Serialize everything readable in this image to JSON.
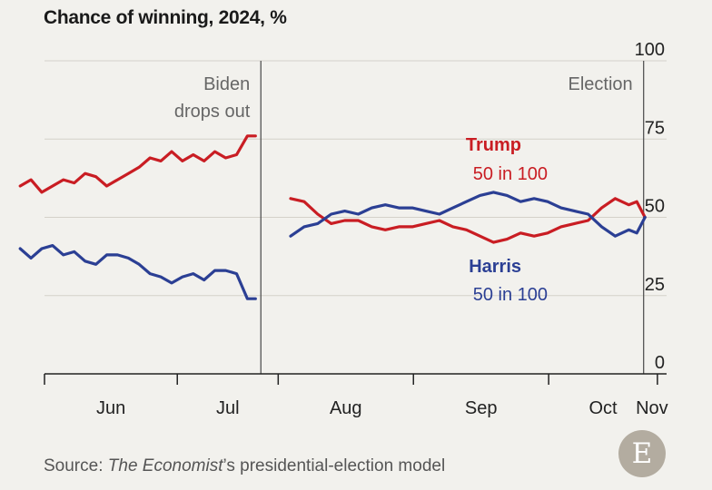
{
  "chart_data": {
    "type": "line",
    "title": "Chance of winning, 2024, %",
    "xlabel": "",
    "ylabel": "",
    "ylim": [
      0,
      100
    ],
    "x_domain": [
      0,
      23
    ],
    "y_ticks": [
      {
        "value": 100,
        "label": "100"
      },
      {
        "value": 75,
        "label": "75"
      },
      {
        "value": 50,
        "label": "50"
      },
      {
        "value": 25,
        "label": "25"
      },
      {
        "value": 0,
        "label": "0"
      }
    ],
    "x_ticks": [
      {
        "value": 0,
        "label": "Jun"
      },
      {
        "value": 4.91,
        "label": "Jul"
      },
      {
        "value": 8.64,
        "label": "Aug"
      },
      {
        "value": 13.64,
        "label": "Sep"
      },
      {
        "value": 18.64,
        "label": "Oct"
      },
      {
        "value": 22.66,
        "label": "Nov"
      }
    ],
    "annotations": [
      {
        "name": "biden-drops-out",
        "x": 8,
        "lines": [
          "Biden",
          "drops out"
        ]
      },
      {
        "name": "election",
        "x": 22.15,
        "lines": [
          "Election"
        ]
      }
    ],
    "series": [
      {
        "name": "Trump",
        "label": "Trump",
        "value_label": "50 in 100",
        "color": "#c91d23",
        "segments": [
          [
            [
              -0.9,
              60
            ],
            [
              -0.5,
              62
            ],
            [
              -0.1,
              58
            ],
            [
              0.3,
              60
            ],
            [
              0.7,
              62
            ],
            [
              1.1,
              61
            ],
            [
              1.5,
              64
            ],
            [
              1.9,
              63
            ],
            [
              2.3,
              60
            ],
            [
              2.7,
              62
            ],
            [
              3.1,
              64
            ],
            [
              3.5,
              66
            ],
            [
              3.9,
              69
            ],
            [
              4.3,
              68
            ],
            [
              4.7,
              71
            ],
            [
              5.1,
              68
            ],
            [
              5.5,
              70
            ],
            [
              5.9,
              68
            ],
            [
              6.3,
              71
            ],
            [
              6.7,
              69
            ],
            [
              7.1,
              70
            ],
            [
              7.5,
              76
            ],
            [
              7.8,
              76
            ]
          ],
          [
            [
              9.1,
              56
            ],
            [
              9.6,
              55
            ],
            [
              10.1,
              51
            ],
            [
              10.6,
              48
            ],
            [
              11.1,
              49
            ],
            [
              11.6,
              49
            ],
            [
              12.1,
              47
            ],
            [
              12.6,
              46
            ],
            [
              13.1,
              47
            ],
            [
              13.6,
              47
            ],
            [
              14.1,
              48
            ],
            [
              14.6,
              49
            ],
            [
              15.1,
              47
            ],
            [
              15.6,
              46
            ],
            [
              16.1,
              44
            ],
            [
              16.6,
              42
            ],
            [
              17.1,
              43
            ],
            [
              17.6,
              45
            ],
            [
              18.1,
              44
            ],
            [
              18.6,
              45
            ],
            [
              19.1,
              47
            ],
            [
              19.6,
              48
            ],
            [
              20.1,
              49
            ],
            [
              20.6,
              53
            ],
            [
              21.1,
              56
            ],
            [
              21.6,
              54
            ],
            [
              21.9,
              55
            ],
            [
              22.2,
              50
            ]
          ]
        ]
      },
      {
        "name": "Harris",
        "label": "Harris",
        "value_label": "50 in 100",
        "color": "#2b3f94",
        "segments": [
          [
            [
              -0.9,
              40
            ],
            [
              -0.5,
              37
            ],
            [
              -0.1,
              40
            ],
            [
              0.3,
              41
            ],
            [
              0.7,
              38
            ],
            [
              1.1,
              39
            ],
            [
              1.5,
              36
            ],
            [
              1.9,
              35
            ],
            [
              2.3,
              38
            ],
            [
              2.7,
              38
            ],
            [
              3.1,
              37
            ],
            [
              3.5,
              35
            ],
            [
              3.9,
              32
            ],
            [
              4.3,
              31
            ],
            [
              4.7,
              29
            ],
            [
              5.1,
              31
            ],
            [
              5.5,
              32
            ],
            [
              5.9,
              30
            ],
            [
              6.3,
              33
            ],
            [
              6.7,
              33
            ],
            [
              7.1,
              32
            ],
            [
              7.5,
              24
            ],
            [
              7.8,
              24
            ]
          ],
          [
            [
              9.1,
              44
            ],
            [
              9.6,
              47
            ],
            [
              10.1,
              48
            ],
            [
              10.6,
              51
            ],
            [
              11.1,
              52
            ],
            [
              11.6,
              51
            ],
            [
              12.1,
              53
            ],
            [
              12.6,
              54
            ],
            [
              13.1,
              53
            ],
            [
              13.6,
              53
            ],
            [
              14.1,
              52
            ],
            [
              14.6,
              51
            ],
            [
              15.1,
              53
            ],
            [
              15.6,
              55
            ],
            [
              16.1,
              57
            ],
            [
              16.6,
              58
            ],
            [
              17.1,
              57
            ],
            [
              17.6,
              55
            ],
            [
              18.1,
              56
            ],
            [
              18.6,
              55
            ],
            [
              19.1,
              53
            ],
            [
              19.6,
              52
            ],
            [
              20.1,
              51
            ],
            [
              20.6,
              47
            ],
            [
              21.1,
              44
            ],
            [
              21.6,
              46
            ],
            [
              21.9,
              45
            ],
            [
              22.2,
              50
            ]
          ]
        ]
      }
    ]
  },
  "source": {
    "prefix": "Source: ",
    "publication": "The Economist",
    "suffix": "’s presidential-election model"
  },
  "logo": {
    "letter": "E"
  }
}
